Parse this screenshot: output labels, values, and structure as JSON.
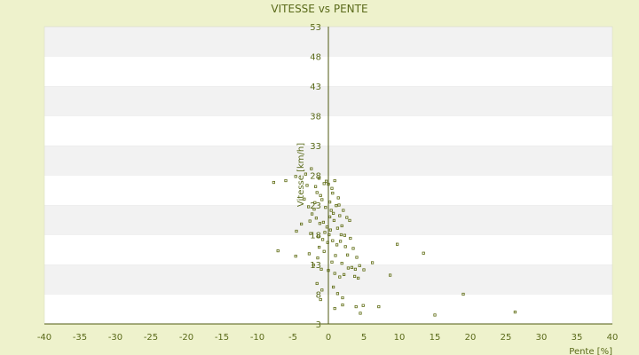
{
  "chart_data": {
    "type": "scatter",
    "title": "VITESSE vs PENTE",
    "xlabel": "Pente [%]",
    "ylabel": "Vitesse [km/h]",
    "xlim": [
      -40,
      40
    ],
    "ylim": [
      3,
      53
    ],
    "x_ticks": [
      -40,
      -35,
      -30,
      -25,
      -20,
      -15,
      -10,
      -5,
      0,
      5,
      10,
      15,
      20,
      25,
      30,
      35,
      40
    ],
    "y_ticks": [
      3,
      8,
      13,
      18,
      23,
      28,
      33,
      38,
      43,
      48,
      53
    ],
    "grid": "horizontal alternating bands",
    "legend": "none",
    "colors": {
      "background": "#eef2cc",
      "plot_band_light": "#ffffff",
      "plot_band_dark": "#f2f2f2",
      "marker": "#5e6b12",
      "axis": "#4f5a10",
      "text": "#5a6a1a"
    },
    "points": [
      [
        -7.7,
        26.8
      ],
      [
        -6.0,
        27.1
      ],
      [
        -4.6,
        27.8
      ],
      [
        -3.2,
        28.2
      ],
      [
        -2.4,
        29.1
      ],
      [
        -1.3,
        27.5
      ],
      [
        -0.6,
        26.6
      ],
      [
        -0.3,
        27.0
      ],
      [
        0.0,
        26.5
      ],
      [
        0.5,
        25.8
      ],
      [
        0.9,
        27.1
      ],
      [
        1.4,
        24.2
      ],
      [
        -3.4,
        24.0
      ],
      [
        -2.8,
        22.7
      ],
      [
        -1.9,
        23.4
      ],
      [
        -1.6,
        25.1
      ],
      [
        -1.1,
        24.6
      ],
      [
        -0.9,
        23.9
      ],
      [
        -0.4,
        22.6
      ],
      [
        0.2,
        23.5
      ],
      [
        0.4,
        22.1
      ],
      [
        0.7,
        21.6
      ],
      [
        1.1,
        22.9
      ],
      [
        1.6,
        21.2
      ],
      [
        2.1,
        22.1
      ],
      [
        2.6,
        20.9
      ],
      [
        3.0,
        20.4
      ],
      [
        -2.3,
        21.5
      ],
      [
        -1.7,
        20.8
      ],
      [
        -1.2,
        19.9
      ],
      [
        -0.7,
        20.1
      ],
      [
        -0.2,
        19.3
      ],
      [
        0.3,
        18.8
      ],
      [
        0.8,
        20.4
      ],
      [
        1.3,
        19.1
      ],
      [
        1.8,
        18.0
      ],
      [
        2.3,
        17.9
      ],
      [
        -4.5,
        18.6
      ],
      [
        -3.8,
        19.8
      ],
      [
        -2.5,
        18.2
      ],
      [
        -1.4,
        17.8
      ],
      [
        -0.8,
        17.2
      ],
      [
        0.1,
        18.0
      ],
      [
        0.6,
        17.0
      ],
      [
        1.2,
        16.3
      ],
      [
        1.7,
        16.9
      ],
      [
        2.4,
        16.0
      ],
      [
        3.5,
        15.7
      ],
      [
        4.0,
        14.2
      ],
      [
        -7.1,
        15.3
      ],
      [
        -4.6,
        14.4
      ],
      [
        -2.7,
        14.8
      ],
      [
        -1.5,
        14.1
      ],
      [
        -0.6,
        15.2
      ],
      [
        0.5,
        13.4
      ],
      [
        1.0,
        14.5
      ],
      [
        1.9,
        13.2
      ],
      [
        2.8,
        12.4
      ],
      [
        3.3,
        12.5
      ],
      [
        3.8,
        12.2
      ],
      [
        4.4,
        12.8
      ],
      [
        5.0,
        12.1
      ],
      [
        6.2,
        13.3
      ],
      [
        -2.1,
        12.9
      ],
      [
        -1.0,
        12.2
      ],
      [
        0.0,
        12.0
      ],
      [
        0.9,
        11.5
      ],
      [
        1.6,
        10.9
      ],
      [
        2.2,
        11.3
      ],
      [
        3.7,
        11.0
      ],
      [
        4.2,
        10.7
      ],
      [
        -1.6,
        9.8
      ],
      [
        -0.9,
        8.7
      ],
      [
        0.7,
        9.2
      ],
      [
        1.3,
        8.1
      ],
      [
        2.0,
        7.4
      ],
      [
        -1.1,
        7.1
      ],
      [
        0.9,
        5.6
      ],
      [
        2.0,
        6.2
      ],
      [
        3.9,
        5.9
      ],
      [
        4.5,
        4.8
      ],
      [
        4.9,
        6.1
      ],
      [
        7.1,
        5.9
      ],
      [
        8.7,
        11.2
      ],
      [
        9.7,
        16.4
      ],
      [
        13.4,
        14.9
      ],
      [
        15.0,
        4.5
      ],
      [
        19.0,
        8.0
      ],
      [
        26.3,
        5.0
      ],
      [
        -2.0,
        22.3
      ],
      [
        -3.0,
        26.3
      ],
      [
        0.2,
        21.0
      ],
      [
        1.5,
        23.0
      ],
      [
        -0.5,
        18.4
      ],
      [
        2.7,
        14.6
      ],
      [
        -1.8,
        26.1
      ],
      [
        0.6,
        25.0
      ],
      [
        -2.6,
        20.3
      ],
      [
        1.9,
        19.5
      ],
      [
        -0.1,
        16.7
      ],
      [
        3.1,
        17.4
      ],
      [
        -1.3,
        15.9
      ]
    ]
  }
}
